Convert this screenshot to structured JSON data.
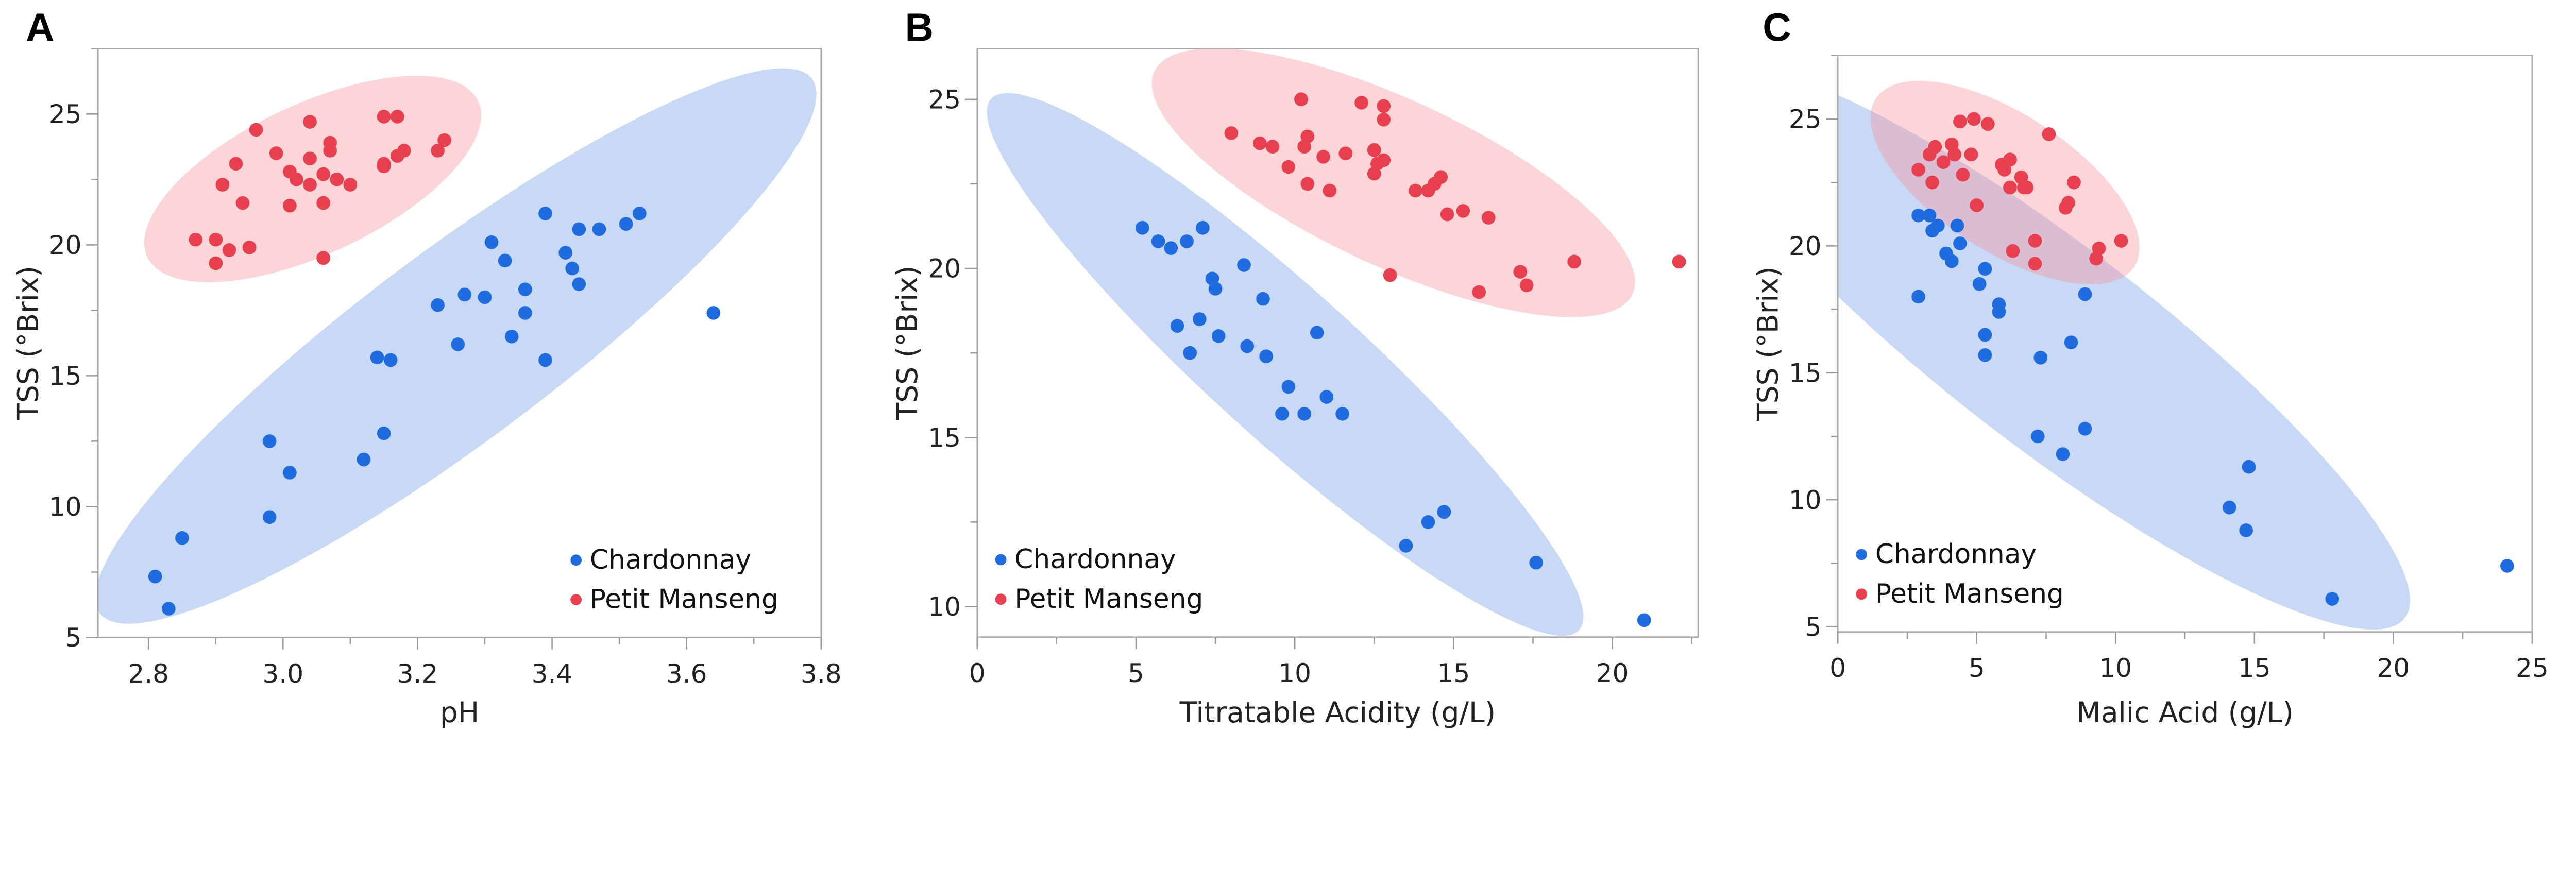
{
  "colors": {
    "Chardonnay": "#1f6ce0",
    "Petit Manseng": "#e8404f",
    "Chardonnay_fill": "#6f9be8",
    "Petit Manseng_fill": "#f7909c"
  },
  "legend_labels": [
    "Chardonnay",
    "Petit Manseng"
  ],
  "chart_data": [
    {
      "type": "scatter",
      "panel": "A",
      "title": "",
      "xlabel": "pH",
      "ylabel": "TSS (°Brix)",
      "xlim": [
        2.725,
        3.8
      ],
      "ylim": [
        5,
        27.5
      ],
      "xticks": [
        "2.8",
        "3.0",
        "3.2",
        "3.4",
        "3.6",
        "3.8"
      ],
      "yticks": [
        "5",
        "10",
        "15",
        "20",
        "25"
      ],
      "legend_position": "bottom-right",
      "grid": false,
      "density_ellipse": "95%",
      "series": [
        {
          "name": "Chardonnay",
          "points": [
            [
              2.81,
              7.33
            ],
            [
              2.83,
              6.1
            ],
            [
              2.85,
              8.8
            ],
            [
              2.98,
              9.6
            ],
            [
              2.98,
              12.5
            ],
            [
              3.01,
              11.3
            ],
            [
              3.12,
              11.8
            ],
            [
              3.15,
              12.8
            ],
            [
              3.14,
              15.7
            ],
            [
              3.16,
              15.6
            ],
            [
              3.23,
              17.7
            ],
            [
              3.26,
              16.2
            ],
            [
              3.27,
              18.1
            ],
            [
              3.3,
              18.0
            ],
            [
              3.31,
              20.1
            ],
            [
              3.33,
              19.4
            ],
            [
              3.34,
              16.5
            ],
            [
              3.36,
              18.3
            ],
            [
              3.36,
              17.4
            ],
            [
              3.39,
              21.2
            ],
            [
              3.39,
              15.6
            ],
            [
              3.42,
              19.7
            ],
            [
              3.43,
              19.1
            ],
            [
              3.44,
              20.6
            ],
            [
              3.44,
              18.5
            ],
            [
              3.47,
              20.6
            ],
            [
              3.51,
              20.8
            ],
            [
              3.53,
              21.2
            ],
            [
              3.64,
              17.4
            ]
          ]
        },
        {
          "name": "Petit Manseng",
          "points": [
            [
              2.87,
              20.2
            ],
            [
              2.9,
              20.2
            ],
            [
              2.9,
              19.3
            ],
            [
              2.92,
              19.8
            ],
            [
              2.95,
              19.9
            ],
            [
              2.91,
              22.3
            ],
            [
              2.93,
              23.1
            ],
            [
              2.94,
              21.6
            ],
            [
              2.96,
              24.4
            ],
            [
              2.99,
              23.5
            ],
            [
              3.01,
              22.8
            ],
            [
              3.02,
              22.5
            ],
            [
              3.01,
              21.5
            ],
            [
              3.04,
              23.3
            ],
            [
              3.04,
              22.3
            ],
            [
              3.04,
              24.7
            ],
            [
              3.06,
              21.6
            ],
            [
              3.06,
              19.5
            ],
            [
              3.06,
              22.7
            ],
            [
              3.07,
              23.9
            ],
            [
              3.07,
              23.6
            ],
            [
              3.08,
              22.5
            ],
            [
              3.1,
              22.3
            ],
            [
              3.15,
              24.9
            ],
            [
              3.17,
              24.9
            ],
            [
              3.15,
              23.1
            ],
            [
              3.15,
              23.0
            ],
            [
              3.17,
              23.4
            ],
            [
              3.18,
              23.6
            ],
            [
              3.23,
              23.6
            ],
            [
              3.24,
              24.0
            ]
          ]
        }
      ]
    },
    {
      "type": "scatter",
      "panel": "B",
      "title": "",
      "xlabel": "Titratable Acidity (g/L)",
      "ylabel": "TSS (°Brix)",
      "xlim": [
        0,
        22.7
      ],
      "ylim": [
        9.1,
        26.5
      ],
      "xticks": [
        "0",
        "5",
        "10",
        "15",
        "20"
      ],
      "yticks": [
        "10",
        "15",
        "20",
        "25"
      ],
      "legend_position": "bottom-left",
      "grid": false,
      "density_ellipse": "95%",
      "series": [
        {
          "name": "Chardonnay",
          "points": [
            [
              5.2,
              21.2
            ],
            [
              5.7,
              20.8
            ],
            [
              6.1,
              20.6
            ],
            [
              6.6,
              20.8
            ],
            [
              7.1,
              21.2
            ],
            [
              8.4,
              20.1
            ],
            [
              7.4,
              19.7
            ],
            [
              7.5,
              19.4
            ],
            [
              9.0,
              19.1
            ],
            [
              6.3,
              18.3
            ],
            [
              7.0,
              18.5
            ],
            [
              7.6,
              18.0
            ],
            [
              6.7,
              17.5
            ],
            [
              8.5,
              17.7
            ],
            [
              9.1,
              17.4
            ],
            [
              10.7,
              18.1
            ],
            [
              9.8,
              16.5
            ],
            [
              11.0,
              16.2
            ],
            [
              9.6,
              15.7
            ],
            [
              10.3,
              15.7
            ],
            [
              11.5,
              15.7
            ],
            [
              13.5,
              11.8
            ],
            [
              14.2,
              12.5
            ],
            [
              14.7,
              12.8
            ],
            [
              17.6,
              11.3
            ],
            [
              21.0,
              9.6
            ]
          ]
        },
        {
          "name": "Petit Manseng",
          "points": [
            [
              8.0,
              24.0
            ],
            [
              8.9,
              23.7
            ],
            [
              9.3,
              23.6
            ],
            [
              9.8,
              23.0
            ],
            [
              10.2,
              25.0
            ],
            [
              10.4,
              23.9
            ],
            [
              10.3,
              23.6
            ],
            [
              10.9,
              23.3
            ],
            [
              10.4,
              22.5
            ],
            [
              11.1,
              22.3
            ],
            [
              11.6,
              23.4
            ],
            [
              12.1,
              24.9
            ],
            [
              12.8,
              24.8
            ],
            [
              12.8,
              24.4
            ],
            [
              12.5,
              23.5
            ],
            [
              12.6,
              23.1
            ],
            [
              12.8,
              23.2
            ],
            [
              12.5,
              22.8
            ],
            [
              13.8,
              22.3
            ],
            [
              14.2,
              22.3
            ],
            [
              14.4,
              22.5
            ],
            [
              14.6,
              22.7
            ],
            [
              14.8,
              21.6
            ],
            [
              15.3,
              21.7
            ],
            [
              16.1,
              21.5
            ],
            [
              13.0,
              19.8
            ],
            [
              15.8,
              19.3
            ],
            [
              17.1,
              19.9
            ],
            [
              17.3,
              19.5
            ],
            [
              18.8,
              20.2
            ],
            [
              22.1,
              20.2
            ]
          ]
        }
      ]
    },
    {
      "type": "scatter",
      "panel": "C",
      "title": "",
      "xlabel": "Malic Acid (g/L)",
      "ylabel": "TSS (°Brix)",
      "xlim": [
        0,
        25
      ],
      "ylim": [
        4.8,
        27.5
      ],
      "xticks": [
        "0",
        "5",
        "10",
        "15",
        "20",
        "25"
      ],
      "yticks": [
        "5",
        "10",
        "15",
        "20",
        "25"
      ],
      "legend_position": "bottom-left",
      "grid": false,
      "density_ellipse": "95%",
      "series": [
        {
          "name": "Chardonnay",
          "points": [
            [
              2.9,
              21.2
            ],
            [
              3.3,
              21.2
            ],
            [
              3.4,
              20.6
            ],
            [
              3.6,
              20.8
            ],
            [
              4.3,
              20.8
            ],
            [
              4.4,
              20.1
            ],
            [
              3.9,
              19.7
            ],
            [
              4.1,
              19.4
            ],
            [
              5.3,
              19.1
            ],
            [
              5.1,
              18.5
            ],
            [
              2.9,
              18.0
            ],
            [
              5.8,
              17.7
            ],
            [
              5.8,
              17.4
            ],
            [
              8.9,
              18.1
            ],
            [
              5.3,
              16.5
            ],
            [
              5.3,
              15.7
            ],
            [
              7.3,
              15.6
            ],
            [
              8.4,
              16.2
            ],
            [
              7.2,
              12.5
            ],
            [
              8.9,
              12.8
            ],
            [
              8.1,
              11.8
            ],
            [
              14.8,
              11.3
            ],
            [
              14.1,
              9.7
            ],
            [
              14.7,
              8.8
            ],
            [
              17.8,
              6.1
            ],
            [
              24.1,
              7.4
            ]
          ]
        },
        {
          "name": "Petit Manseng",
          "points": [
            [
              2.9,
              23.0
            ],
            [
              3.3,
              23.6
            ],
            [
              3.5,
              23.9
            ],
            [
              3.4,
              22.5
            ],
            [
              3.8,
              23.3
            ],
            [
              4.1,
              24.0
            ],
            [
              4.2,
              23.6
            ],
            [
              4.4,
              24.9
            ],
            [
              4.5,
              22.8
            ],
            [
              4.8,
              23.6
            ],
            [
              4.9,
              25.0
            ],
            [
              5.4,
              24.8
            ],
            [
              5.0,
              21.6
            ],
            [
              5.9,
              23.2
            ],
            [
              6.0,
              23.0
            ],
            [
              6.2,
              23.4
            ],
            [
              6.2,
              22.3
            ],
            [
              6.6,
              22.7
            ],
            [
              6.7,
              22.3
            ],
            [
              6.8,
              22.3
            ],
            [
              7.6,
              24.4
            ],
            [
              8.5,
              22.5
            ],
            [
              8.2,
              21.5
            ],
            [
              8.3,
              21.7
            ],
            [
              7.1,
              20.2
            ],
            [
              6.3,
              19.8
            ],
            [
              7.1,
              19.3
            ],
            [
              9.4,
              19.9
            ],
            [
              9.3,
              19.5
            ],
            [
              10.2,
              20.2
            ]
          ]
        }
      ]
    }
  ]
}
